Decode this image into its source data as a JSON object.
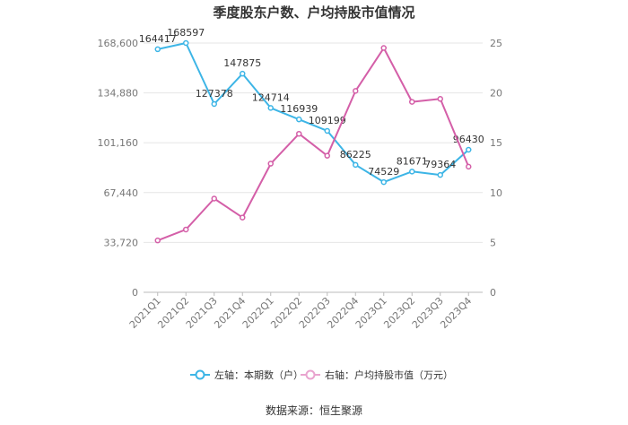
{
  "chart_data": {
    "type": "line",
    "title": "季度股东户数、户均持股市值情况",
    "categories": [
      "2021Q1",
      "2021Q2",
      "2021Q3",
      "2021Q4",
      "2022Q1",
      "2022Q2",
      "2022Q3",
      "2022Q4",
      "2023Q1",
      "2023Q2",
      "2023Q3",
      "2023Q4"
    ],
    "y_left": {
      "min": 0,
      "max": 168600,
      "ticks": [
        "0",
        "33,720",
        "67,440",
        "101,160",
        "134,880",
        "168,600"
      ]
    },
    "y_right": {
      "min": 0,
      "max": 25,
      "ticks": [
        "0",
        "5",
        "10",
        "15",
        "20",
        "25"
      ]
    },
    "series": [
      {
        "name": "左轴：本期数（户）",
        "axis": "left",
        "color": "#3db5e6",
        "values": [
          164417,
          168597,
          127378,
          147875,
          124714,
          116939,
          109199,
          86225,
          74529,
          81671,
          79364,
          96430
        ],
        "labels": [
          "164417",
          "168597",
          "127378",
          "147875",
          "124714",
          "116939",
          "109199",
          "86225",
          "74529",
          "81671",
          "79364",
          "96430"
        ]
      },
      {
        "name": "右轴：户均持股市值（万元）",
        "axis": "right",
        "color": "#d45fa8",
        "values": [
          5.2,
          6.3,
          9.4,
          7.5,
          12.9,
          15.9,
          13.7,
          20.2,
          24.5,
          19.1,
          19.4,
          12.6
        ]
      }
    ],
    "grid": true,
    "legend": "bottom"
  },
  "source": "数据来源：恒生聚源"
}
